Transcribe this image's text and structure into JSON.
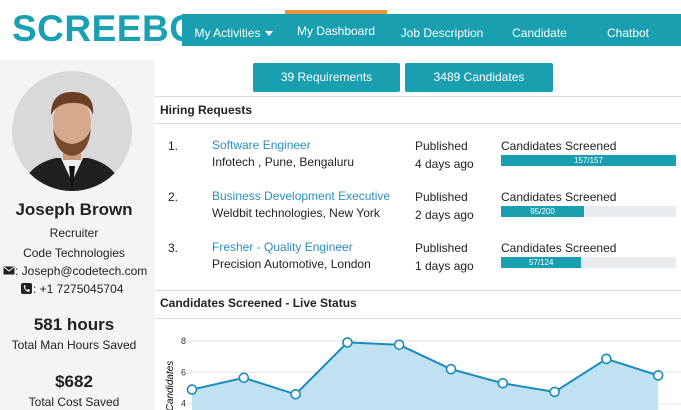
{
  "logo": "SCREEBO",
  "nav": {
    "items": [
      "My Activities",
      "My Dashboard",
      "Job Description",
      "Candidate",
      "Chatbot"
    ],
    "active": 1
  },
  "summary_buttons": [
    "39 Requirements",
    "3489 Candidates"
  ],
  "profile": {
    "name": "Joseph Brown",
    "role": "Recruiter",
    "company": "Code Technologies",
    "email": ": Joseph@codetech.com",
    "phone": ": +1 7275045704",
    "stats": [
      {
        "value": "581 hours",
        "label": "Total Man Hours Saved"
      },
      {
        "value": "$682",
        "label": "Total Cost Saved"
      }
    ]
  },
  "hiring_requests": {
    "title": "Hiring Requests",
    "rows": [
      {
        "number": "1.",
        "title": "Software Engineer",
        "company": "Infotech , Pune, Bengaluru",
        "status": "Published",
        "age": "4 days ago",
        "metric_label": "Candidates Screened",
        "screened": 157,
        "total": 157,
        "progress_label": "157/157"
      },
      {
        "number": "2.",
        "title": "Business Development Executive",
        "company": "Weldbit technologies, New York",
        "status": "Published",
        "age": "2 days ago",
        "metric_label": "Candidates Screened",
        "screened": 95,
        "total": 200,
        "progress_label": "95/200"
      },
      {
        "number": "3.",
        "title": "Fresher - Quality Engineer",
        "company": "Precision Automotive, London",
        "status": "Published",
        "age": "1 days ago",
        "metric_label": "Candidates Screened",
        "screened": 57,
        "total": 124,
        "progress_label": "57/124"
      }
    ]
  },
  "chart_data": {
    "type": "line",
    "title": "Candidates Screened - Live Status",
    "y_label": "Candidates",
    "categories": [
      null,
      null,
      null,
      null,
      null,
      null,
      null,
      null,
      null,
      null
    ],
    "values": [
      4.9,
      5.65,
      4.6,
      7.9,
      7.75,
      6.2,
      5.3,
      4.75,
      6.85,
      5.8
    ],
    "ylim": [
      3.6,
      9.2
    ],
    "yticks": [
      4,
      6,
      8
    ],
    "grid": true,
    "color": "#1b8bbd",
    "fill": "#bfe1f1"
  }
}
